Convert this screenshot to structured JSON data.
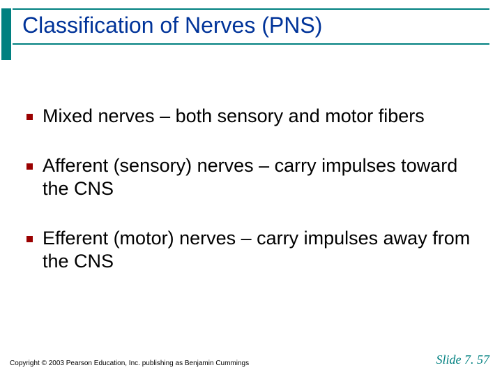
{
  "slide": {
    "title": "Classification of Nerves (PNS)",
    "title_color": "#003399",
    "accent_color": "#008080",
    "bullet_color": "#9a0000",
    "bullets": [
      "Mixed nerves – both sensory and motor fibers",
      "Afferent (sensory) nerves – carry impulses toward the CNS",
      "Efferent (motor) nerves – carry impulses away from the CNS"
    ],
    "copyright": "Copyright © 2003 Pearson Education, Inc. publishing as Benjamin Cummings",
    "slide_number": "Slide 7. 57",
    "title_fontsize": 32,
    "body_fontsize": 27,
    "background_color": "#ffffff"
  }
}
